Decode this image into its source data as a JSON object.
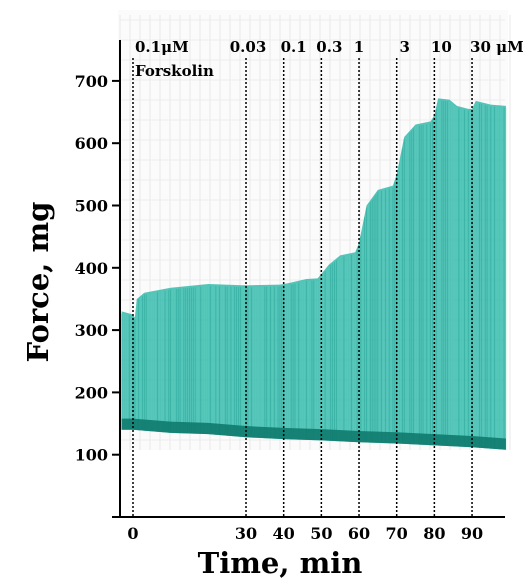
{
  "chart_data": {
    "type": "area",
    "xlabel": "Time, min",
    "ylabel": "Force, mg",
    "xlim": [
      0,
      99
    ],
    "ylim": [
      0,
      730
    ],
    "x_ticks": [
      "0",
      "30",
      "40",
      "50",
      "60",
      "70",
      "80",
      "90"
    ],
    "y_ticks": [
      "100",
      "200",
      "300",
      "400",
      "500",
      "600",
      "700"
    ],
    "annotations": [
      {
        "x": 0,
        "text": "0.1μM"
      },
      {
        "x": 0,
        "text": "Forskolin"
      },
      {
        "x": 30,
        "text": "0.03"
      },
      {
        "x": 40,
        "text": "0.1"
      },
      {
        "x": 50,
        "text": "0.3"
      },
      {
        "x": 60,
        "text": "1"
      },
      {
        "x": 70,
        "text": "3"
      },
      {
        "x": 80,
        "text": "10"
      },
      {
        "x": 90,
        "text": "30 μM"
      }
    ],
    "series": [
      {
        "values_upper": [
          [
            -3,
            330
          ],
          [
            0,
            325
          ],
          [
            0.5,
            320
          ],
          [
            1,
            350
          ],
          [
            3,
            360
          ],
          [
            10,
            368
          ],
          [
            20,
            374
          ],
          [
            29,
            372
          ],
          [
            31,
            372
          ],
          [
            39,
            373
          ],
          [
            41,
            375
          ],
          [
            46,
            382
          ],
          [
            49,
            383
          ],
          [
            50,
            390
          ],
          [
            52,
            405
          ],
          [
            55,
            420
          ],
          [
            59,
            425
          ],
          [
            60,
            440
          ],
          [
            62,
            500
          ],
          [
            65,
            525
          ],
          [
            69,
            532
          ],
          [
            70,
            550
          ],
          [
            72,
            610
          ],
          [
            75,
            630
          ],
          [
            79,
            635
          ],
          [
            80,
            645
          ],
          [
            81,
            672
          ],
          [
            84,
            670
          ],
          [
            86,
            660
          ],
          [
            89,
            655
          ],
          [
            90,
            655
          ],
          [
            91,
            668
          ],
          [
            95,
            662
          ],
          [
            99,
            660
          ]
        ],
        "values_lower": [
          [
            -3,
            140
          ],
          [
            0,
            140
          ],
          [
            10,
            135
          ],
          [
            20,
            133
          ],
          [
            30,
            128
          ],
          [
            40,
            125
          ],
          [
            50,
            123
          ],
          [
            60,
            120
          ],
          [
            70,
            118
          ],
          [
            80,
            115
          ],
          [
            90,
            112
          ],
          [
            99,
            108
          ]
        ]
      }
    ],
    "grid": false,
    "legend": "none"
  }
}
